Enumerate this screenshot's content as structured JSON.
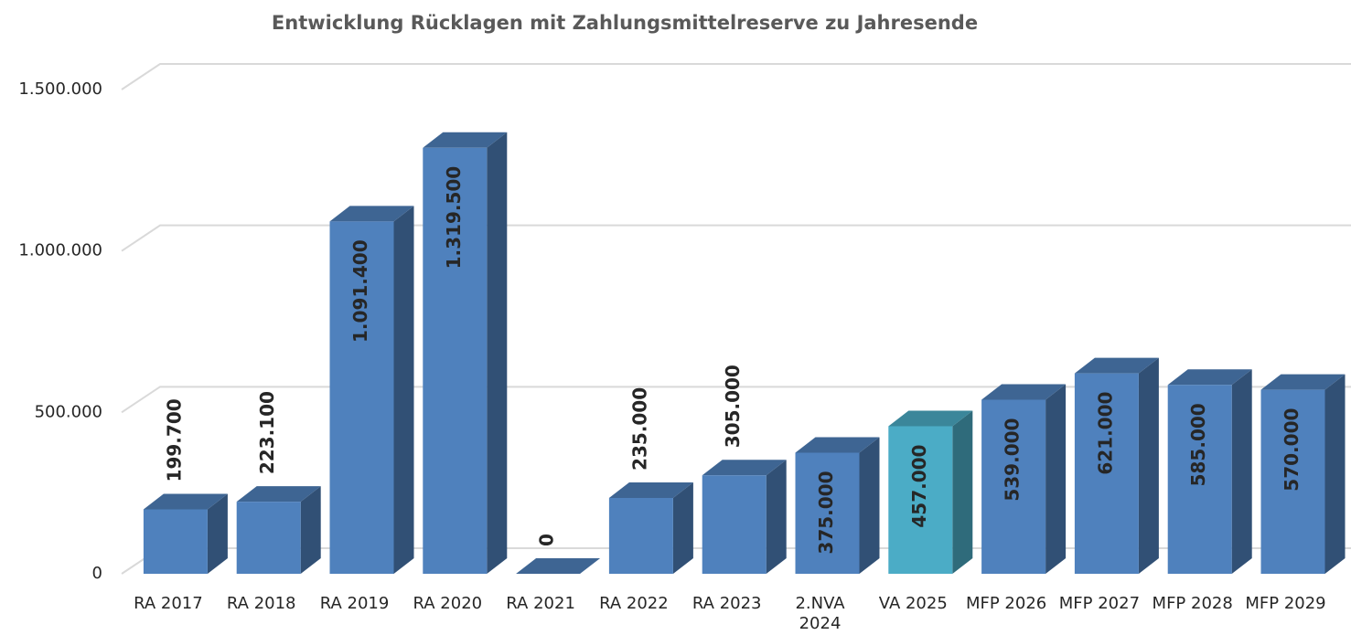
{
  "chart_data": {
    "type": "bar3d",
    "title": "Entwicklung Rücklagen mit Zahlungsmittelreserve zu Jahresende",
    "categories": [
      "RA 2017",
      "RA 2018",
      "RA 2019",
      "RA 2020",
      "RA 2021",
      "RA 2022",
      "RA 2023",
      "2.NVA 2024",
      "VA 2025",
      "MFP 2026",
      "MFP 2027",
      "MFP 2028",
      "MFP 2029"
    ],
    "values": [
      199700,
      223100,
      1091400,
      1319500,
      0,
      235000,
      305000,
      375000,
      457000,
      539000,
      621000,
      585000,
      570000
    ],
    "value_labels": [
      "199.700",
      "223.100",
      "1.091.400",
      "1.319.500",
      "0",
      "235.000",
      "305.000",
      "375.000",
      "457.000",
      "539.000",
      "621.000",
      "585.000",
      "570.000"
    ],
    "colors": [
      "#4f81bd",
      "#4f81bd",
      "#4f81bd",
      "#4f81bd",
      "#4f81bd",
      "#4f81bd",
      "#4f81bd",
      "#4f81bd",
      "#4bacc6",
      "#4f81bd",
      "#4f81bd",
      "#4f81bd",
      "#4f81bd"
    ],
    "ylim": [
      0,
      1500000
    ],
    "yticks": [
      0,
      {
        "value": 500000,
        "label": "500.000"
      },
      {
        "value": 1000000,
        "label": "1.000.000"
      },
      {
        "value": 1500000,
        "label": "1.500.000"
      }
    ],
    "grid": true
  }
}
